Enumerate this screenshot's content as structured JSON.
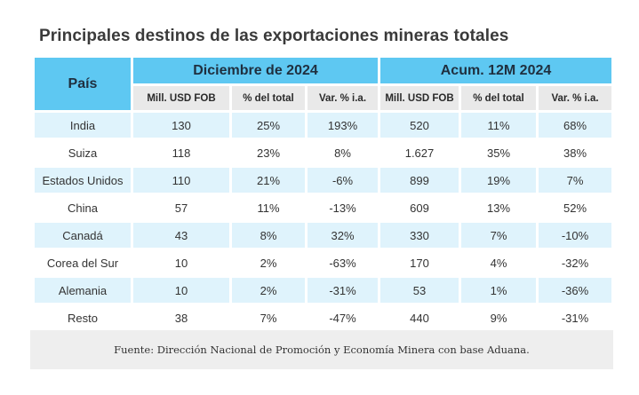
{
  "title": "Principales destinos de las exportaciones mineras totales",
  "header": {
    "country": "País",
    "group1": "Diciembre de 2024",
    "group2": "Acum. 12M 2024",
    "columns": [
      "Mill. USD FOB",
      "% del total",
      "Var. % i.a.",
      "Mill. USD FOB",
      "% del total",
      "Var. % i.a."
    ]
  },
  "rows": [
    {
      "country": "India",
      "values": [
        "130",
        "25%",
        "193%",
        "520",
        "11%",
        "68%"
      ]
    },
    {
      "country": "Suiza",
      "values": [
        "118",
        "23%",
        "8%",
        "1.627",
        "35%",
        "38%"
      ]
    },
    {
      "country": "Estados Unidos",
      "values": [
        "110",
        "21%",
        "-6%",
        "899",
        "19%",
        "7%"
      ]
    },
    {
      "country": "China",
      "values": [
        "57",
        "11%",
        "-13%",
        "609",
        "13%",
        "52%"
      ]
    },
    {
      "country": "Canadá",
      "values": [
        "43",
        "8%",
        "32%",
        "330",
        "7%",
        "-10%"
      ]
    },
    {
      "country": "Corea del Sur",
      "values": [
        "10",
        "2%",
        "-63%",
        "170",
        "4%",
        "-32%"
      ]
    },
    {
      "country": "Alemania",
      "values": [
        "10",
        "2%",
        "-31%",
        "53",
        "1%",
        "-36%"
      ]
    },
    {
      "country": "Resto",
      "values": [
        "38",
        "7%",
        "-47%",
        "440",
        "9%",
        "-31%"
      ]
    }
  ],
  "source": "Fuente: Dirección Nacional de Promoción y Economía Minera con base Aduana.",
  "colors": {
    "header_blue": "#5ec8f2",
    "subheader_gray": "#e9e9e9",
    "row_tint": "#dff3fc",
    "footer_gray": "#eeeeee"
  }
}
